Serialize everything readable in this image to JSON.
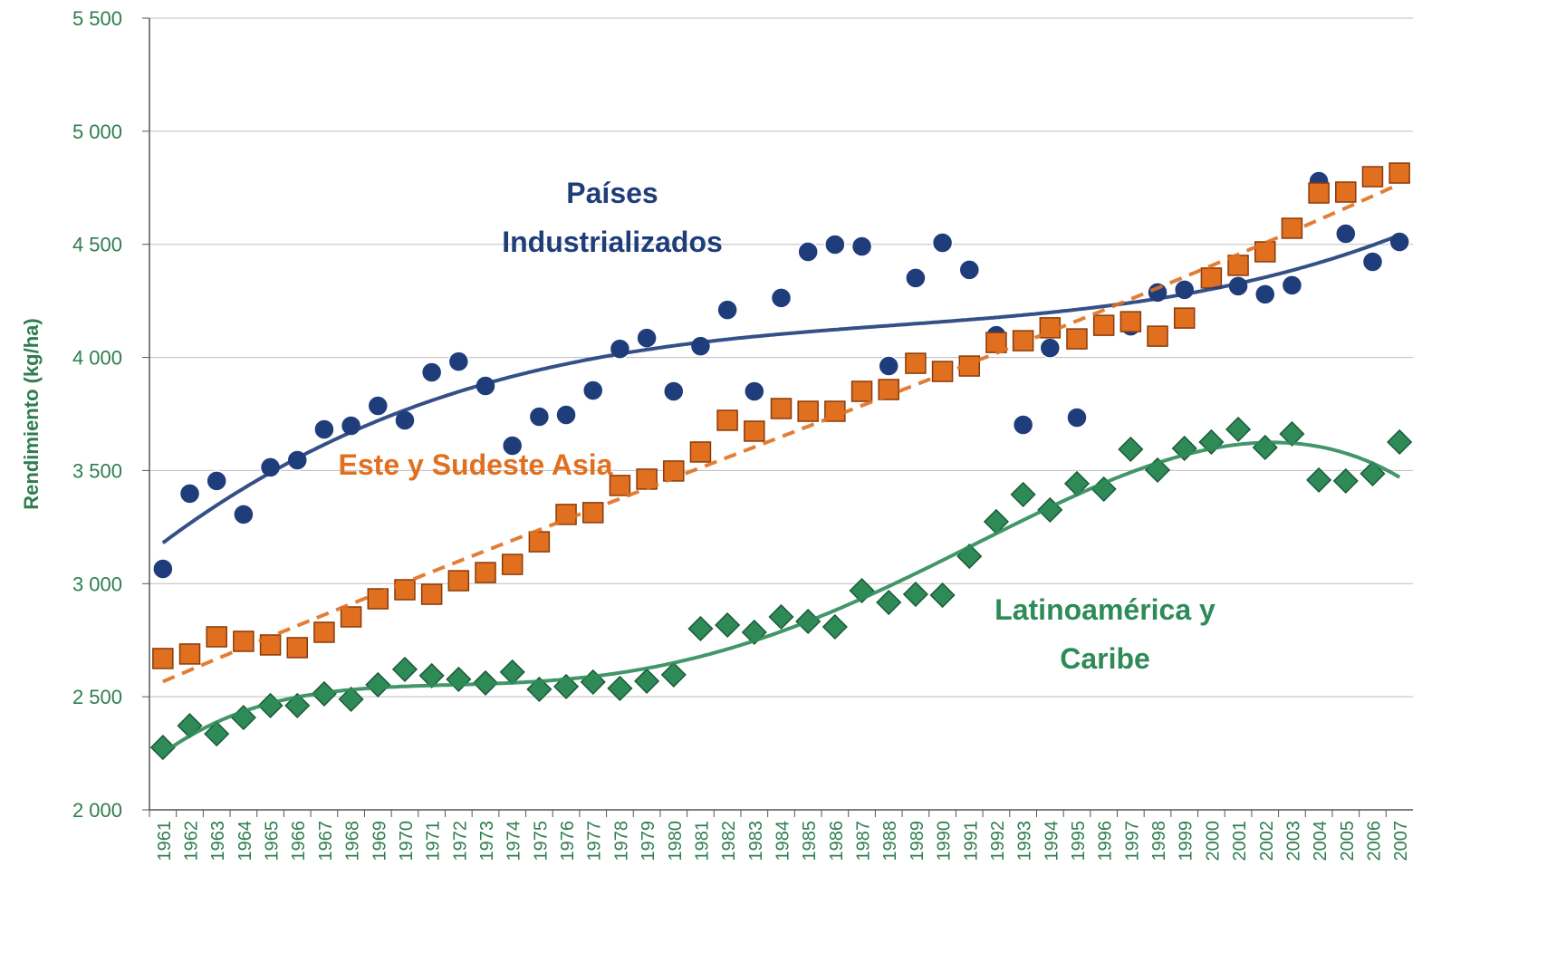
{
  "chart_data": {
    "type": "scatter",
    "y_label": "Rendimiento (kg/ha)",
    "categories": [
      "1961",
      "1962",
      "1963",
      "1964",
      "1965",
      "1966",
      "1967",
      "1968",
      "1969",
      "1970",
      "1971",
      "1972",
      "1973",
      "1974",
      "1975",
      "1976",
      "1977",
      "1978",
      "1979",
      "1980",
      "1981",
      "1982",
      "1983",
      "1984",
      "1985",
      "1986",
      "1987",
      "1988",
      "1989",
      "1990",
      "1991",
      "1992",
      "1993",
      "1994",
      "1995",
      "1996",
      "1997",
      "1998",
      "1999",
      "2000",
      "2001",
      "2002",
      "2003",
      "2004",
      "2005",
      "2006",
      "2007"
    ],
    "series": [
      {
        "name": "Países Industrializados",
        "color": "#1f3d7a",
        "marker": "circle",
        "trendline": {
          "type": "polynomial",
          "order": 3,
          "dashed": false
        },
        "values": [
          3065,
          3398,
          3454,
          3306,
          3514,
          3546,
          3682,
          3698,
          3786,
          3722,
          3934,
          3982,
          3874,
          3610,
          3738,
          3746,
          3854,
          4038,
          4086,
          3850,
          4050,
          4210,
          3850,
          4263,
          4467,
          4499,
          4491,
          3962,
          4351,
          4507,
          4387,
          4098,
          3702,
          4042,
          3734,
          4138,
          4138,
          4287,
          4299,
          4355,
          4315,
          4279,
          4319,
          4779,
          4547,
          4423,
          4511
        ]
      },
      {
        "name": "Este y Sudeste Asia",
        "color": "#e07020",
        "marker": "square",
        "trendline": {
          "type": "polynomial",
          "order": 3,
          "dashed": true
        },
        "values": [
          2669,
          2689,
          2765,
          2745,
          2729,
          2717,
          2785,
          2853,
          2933,
          2973,
          2953,
          3013,
          3049,
          3085,
          3185,
          3306,
          3314,
          3434,
          3462,
          3498,
          3582,
          3722,
          3674,
          3774,
          3762,
          3762,
          3850,
          3858,
          3974,
          3938,
          3962,
          4066,
          4074,
          4131,
          4082,
          4142,
          4158,
          4094,
          4174,
          4351,
          4407,
          4467,
          4571,
          4727,
          4731,
          4799,
          4815
        ]
      },
      {
        "name": "Latinoamérica y Caribe",
        "color": "#2e8b57",
        "marker": "diamond",
        "trendline": {
          "type": "polynomial",
          "order": 5,
          "dashed": false
        },
        "values": [
          2276,
          2372,
          2336,
          2408,
          2461,
          2461,
          2513,
          2489,
          2553,
          2621,
          2593,
          2577,
          2561,
          2609,
          2533,
          2545,
          2565,
          2537,
          2569,
          2597,
          2801,
          2817,
          2785,
          2853,
          2833,
          2809,
          2969,
          2917,
          2953,
          2949,
          3121,
          3274,
          3394,
          3326,
          3442,
          3418,
          3594,
          3502,
          3598,
          3626,
          3682,
          3602,
          3662,
          3458,
          3454,
          3486,
          3626
        ]
      }
    ],
    "ylim": [
      2000,
      5500
    ],
    "yticks": [
      {
        "value": 2000,
        "label": "2 000"
      },
      {
        "value": 2500,
        "label": "2 500"
      },
      {
        "value": 3000,
        "label": "3 000"
      },
      {
        "value": 3500,
        "label": "3 500"
      },
      {
        "value": 4000,
        "label": "4 000"
      },
      {
        "value": 4500,
        "label": "4 500"
      },
      {
        "value": 5000,
        "label": "5 000"
      },
      {
        "value": 5500,
        "label": "5 500"
      }
    ],
    "grid": true,
    "axis_color": "#2e7d4f"
  }
}
